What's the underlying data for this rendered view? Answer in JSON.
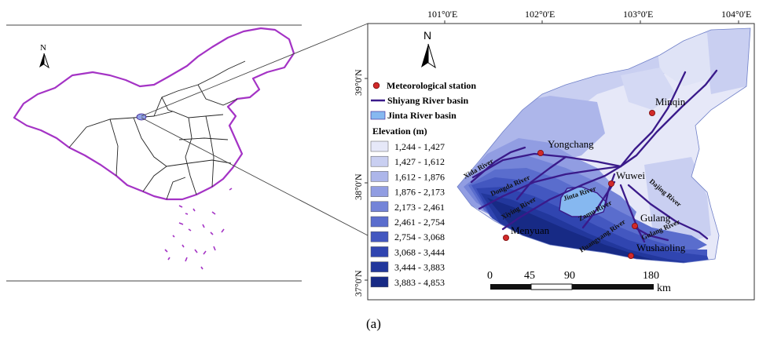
{
  "caption": "(a)",
  "china_map": {
    "north_label": "N",
    "colors": {
      "border": "#a433c5",
      "province": "#222222",
      "highlight": "#8fa0e6"
    }
  },
  "basin_map": {
    "north_label": "N",
    "top_ticks": [
      "101°0'E",
      "102°0'E",
      "103°0'E",
      "104°0'E"
    ],
    "left_ticks": [
      "39°0'N",
      "38°0'N",
      "37°0'N"
    ],
    "places": [
      "Minqin",
      "Yongchang",
      "Wuwei",
      "Gulang",
      "Menyuan",
      "Wushaoling"
    ],
    "rivers": [
      "Xida River",
      "Dongda River",
      "Xiying River",
      "Jinta River",
      "Zamu River",
      "Huangyang River",
      "Gulang River",
      "Dajing River"
    ],
    "scale": {
      "labels": [
        "0",
        "45",
        "90",
        "180"
      ],
      "unit": "km"
    },
    "legend": {
      "station": "Meteorological station",
      "shiyang": "Shiyang River basin",
      "jinta": "Jinta River basin",
      "elevation_title": "Elevation (m)",
      "classes": [
        {
          "label": "1,244 - 1,427",
          "color": "#e6e8f8"
        },
        {
          "label": "1,427 - 1,612",
          "color": "#c9cff1"
        },
        {
          "label": "1,612 - 1,876",
          "color": "#adb6ea"
        },
        {
          "label": "1,876 - 2,173",
          "color": "#919de2"
        },
        {
          "label": "2,173 - 2,461",
          "color": "#7484d8"
        },
        {
          "label": "2,461 - 2,754",
          "color": "#5a6dcd"
        },
        {
          "label": "2,754 - 3,068",
          "color": "#4357c0"
        },
        {
          "label": "3,068 - 3,444",
          "color": "#3045b0"
        },
        {
          "label": "3,444 - 3,883",
          "color": "#22379c"
        },
        {
          "label": "3,883 - 4,853",
          "color": "#172a85"
        }
      ],
      "colors": {
        "station": "#d12a2a",
        "shiyang": "#3a1a8a",
        "jinta": "#86b8f0"
      }
    }
  }
}
